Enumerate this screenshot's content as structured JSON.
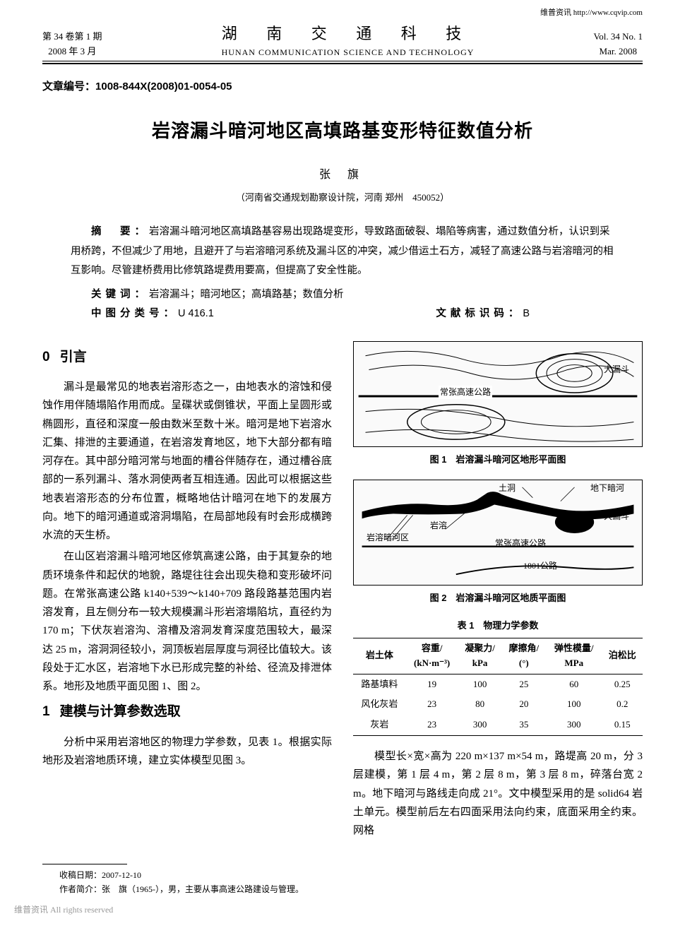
{
  "top_link": "维普资讯 http://www.cqvip.com",
  "header": {
    "vol_issue_cn": "第 34 卷第 1 期",
    "date_cn": "2008 年 3 月",
    "journal_cn": "湖 南 交 通 科 技",
    "journal_en": "HUNAN COMMUNICATION SCIENCE AND TECHNOLOGY",
    "vol_issue_en": "Vol. 34 No. 1",
    "date_en": "Mar. 2008"
  },
  "article_id_label": "文章编号：",
  "article_id": "1008-844X(2008)01-0054-05",
  "title": "岩溶漏斗暗河地区高填路基变形特征数值分析",
  "author": "张 旗",
  "affiliation": "（河南省交通规划勘察设计院，河南 郑州　450052）",
  "abstract": {
    "label": "摘　要：",
    "text": "岩溶漏斗暗河地区高填路基容易出现路堤变形，导致路面破裂、塌陷等病害，通过数值分析，认识到采用桥跨，不但减少了用地，且避开了与岩溶暗河系统及漏斗区的冲突，减少借运土石方，减轻了高速公路与岩溶暗河的相互影响。尽管建桥费用比修筑路堤费用要高，但提高了安全性能。"
  },
  "keywords": {
    "label": "关键词：",
    "text": "岩溶漏斗；暗河地区；高填路基；数值分析"
  },
  "classnum": {
    "label": "中图分类号：",
    "text": "U 416.1"
  },
  "doccode": {
    "label": "文献标识码：",
    "text": "B"
  },
  "section0": {
    "num": "0",
    "title": "引言"
  },
  "para0_1": "漏斗是最常见的地表岩溶形态之一，由地表水的溶蚀和侵蚀作用伴随塌陷作用而成。呈碟状或倒锥状，平面上呈圆形或椭圆形，直径和深度一般由数米至数十米。暗河是地下岩溶水汇集、排泄的主要通道，在岩溶发育地区，地下大部分都有暗河存在。其中部分暗河常与地面的槽谷伴随存在，通过槽谷底部的一系列漏斗、落水洞使两者互相连通。因此可以根据这些地表岩溶形态的分布位置，概略地估计暗河在地下的发展方向。地下的暗河通道或溶洞塌陷，在局部地段有时会形成横跨水流的天生桥。",
  "para0_2": "在山区岩溶漏斗暗河地区修筑高速公路，由于其复杂的地质环境条件和起伏的地貌，路堤往往会出现失稳和变形破坏问题。在常张高速公路 k140+539～k140+709 路段路基范围内岩溶发育，且左侧分布一较大规模漏斗形岩溶塌陷坑，直径约为 170 m；下伏灰岩溶沟、溶槽及溶洞发育深度范围较大，最深达 25 m，溶洞洞径较小，洞顶板岩层厚度与洞径比值较大。该段处于汇水区，岩溶地下水已形成完整的补给、径流及排泄体系。地形及地质平面见图 1、图 2。",
  "section1": {
    "num": "1",
    "title": "建模与计算参数选取"
  },
  "para1_1": "分析中采用岩溶地区的物理力学参数，见表 1。根据实际地形及岩溶地质环境，建立实体模型见图 3。",
  "fig1": {
    "caption": "图 1　岩溶漏斗暗河区地形平面图",
    "labels": {
      "funnel": "大漏斗",
      "highway": "常张高速公路"
    }
  },
  "fig2": {
    "caption": "图 2　岩溶漏斗暗河区地质平面图",
    "labels": {
      "karst": "岩溶",
      "river_zone": "岩溶暗河区",
      "tudong": "土洞",
      "underground": "地下暗河",
      "funnel": "大漏斗",
      "highway": "常张高速公路",
      "road1801": "1801公路"
    }
  },
  "table1": {
    "caption": "表 1　物理力学参数",
    "columns": [
      "岩土体",
      "容重/\n(kN·m⁻³)",
      "凝聚力/\nkPa",
      "摩擦角/\n(°)",
      "弹性模量/\nMPa",
      "泊松比"
    ],
    "rows": [
      [
        "路基填料",
        "19",
        "100",
        "25",
        "60",
        "0.25"
      ],
      [
        "风化灰岩",
        "23",
        "80",
        "20",
        "100",
        "0.2"
      ],
      [
        "灰岩",
        "23",
        "300",
        "35",
        "300",
        "0.15"
      ]
    ]
  },
  "para_r1": "模型长×宽×高为 220 m×137 m×54 m，路堤高 20 m，分 3 层建模，第 1 层 4 m，第 2 层 8 m，第 3 层 8 m，碎落台宽 2 m。地下暗河与路线走向成 21°。文中模型采用的是 solid64 岩土单元。模型前后左右四面采用法向约束，底面采用全约束。网格",
  "footer": {
    "received": "收稿日期：2007-12-10",
    "author_bio": "作者简介：张　旗（1965-），男，主要从事高速公路建设与管理。"
  },
  "watermark": "维普资讯 All rights reserved",
  "style": {
    "text_color": "#000000",
    "bg_color": "#ffffff",
    "rule_color": "#000000"
  }
}
